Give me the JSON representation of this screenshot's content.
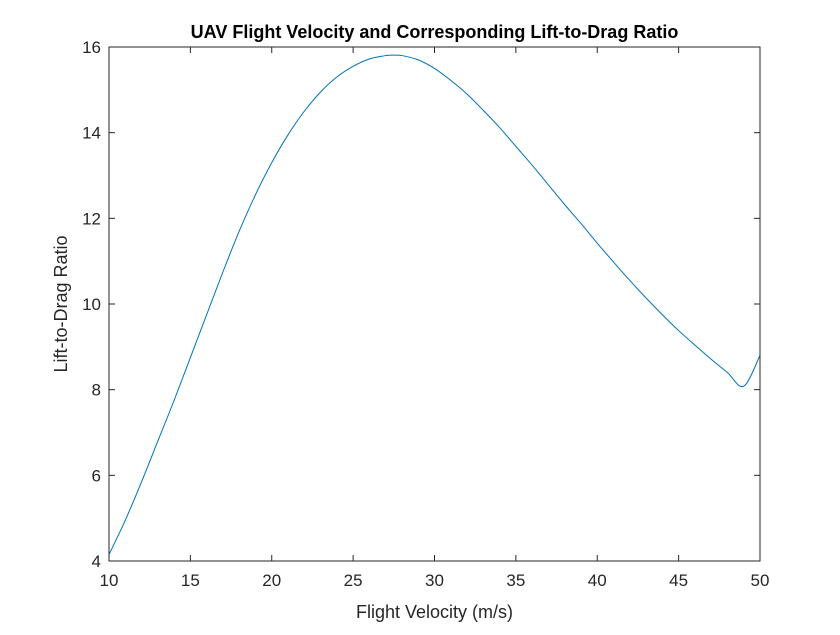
{
  "chart_data": {
    "type": "line",
    "title": "UAV Flight Velocity and Corresponding Lift-to-Drag Ratio",
    "xlabel": "Flight Velocity (m/s)",
    "ylabel": "Lift-to-Drag Ratio",
    "xlim": [
      10,
      50
    ],
    "ylim": [
      4,
      16
    ],
    "xticks": [
      10,
      15,
      20,
      25,
      30,
      35,
      40,
      45,
      50
    ],
    "yticks": [
      4,
      6,
      8,
      10,
      12,
      14,
      16
    ],
    "grid": false,
    "box": true,
    "series": [
      {
        "color": "#0072bd",
        "x": [
          10,
          11,
          12,
          13,
          14,
          15,
          16,
          17,
          18,
          19,
          20,
          21,
          22,
          23,
          24,
          25,
          26,
          27,
          27.5,
          28,
          29,
          30,
          31,
          32,
          33,
          34,
          35,
          36,
          37,
          38,
          39,
          40,
          41,
          42,
          43,
          44,
          45,
          46,
          47,
          48,
          49,
          50
        ],
        "y": [
          4.15,
          4.95,
          5.85,
          6.8,
          7.75,
          8.75,
          9.75,
          10.75,
          11.7,
          12.55,
          13.3,
          13.95,
          14.5,
          14.95,
          15.3,
          15.55,
          15.72,
          15.8,
          15.81,
          15.8,
          15.7,
          15.5,
          15.22,
          14.9,
          14.52,
          14.12,
          13.68,
          13.24,
          12.78,
          12.32,
          11.88,
          11.42,
          10.98,
          10.55,
          10.14,
          9.75,
          9.38,
          9.04,
          8.71,
          8.4,
          8.08,
          8.8
        ]
      }
    ]
  }
}
